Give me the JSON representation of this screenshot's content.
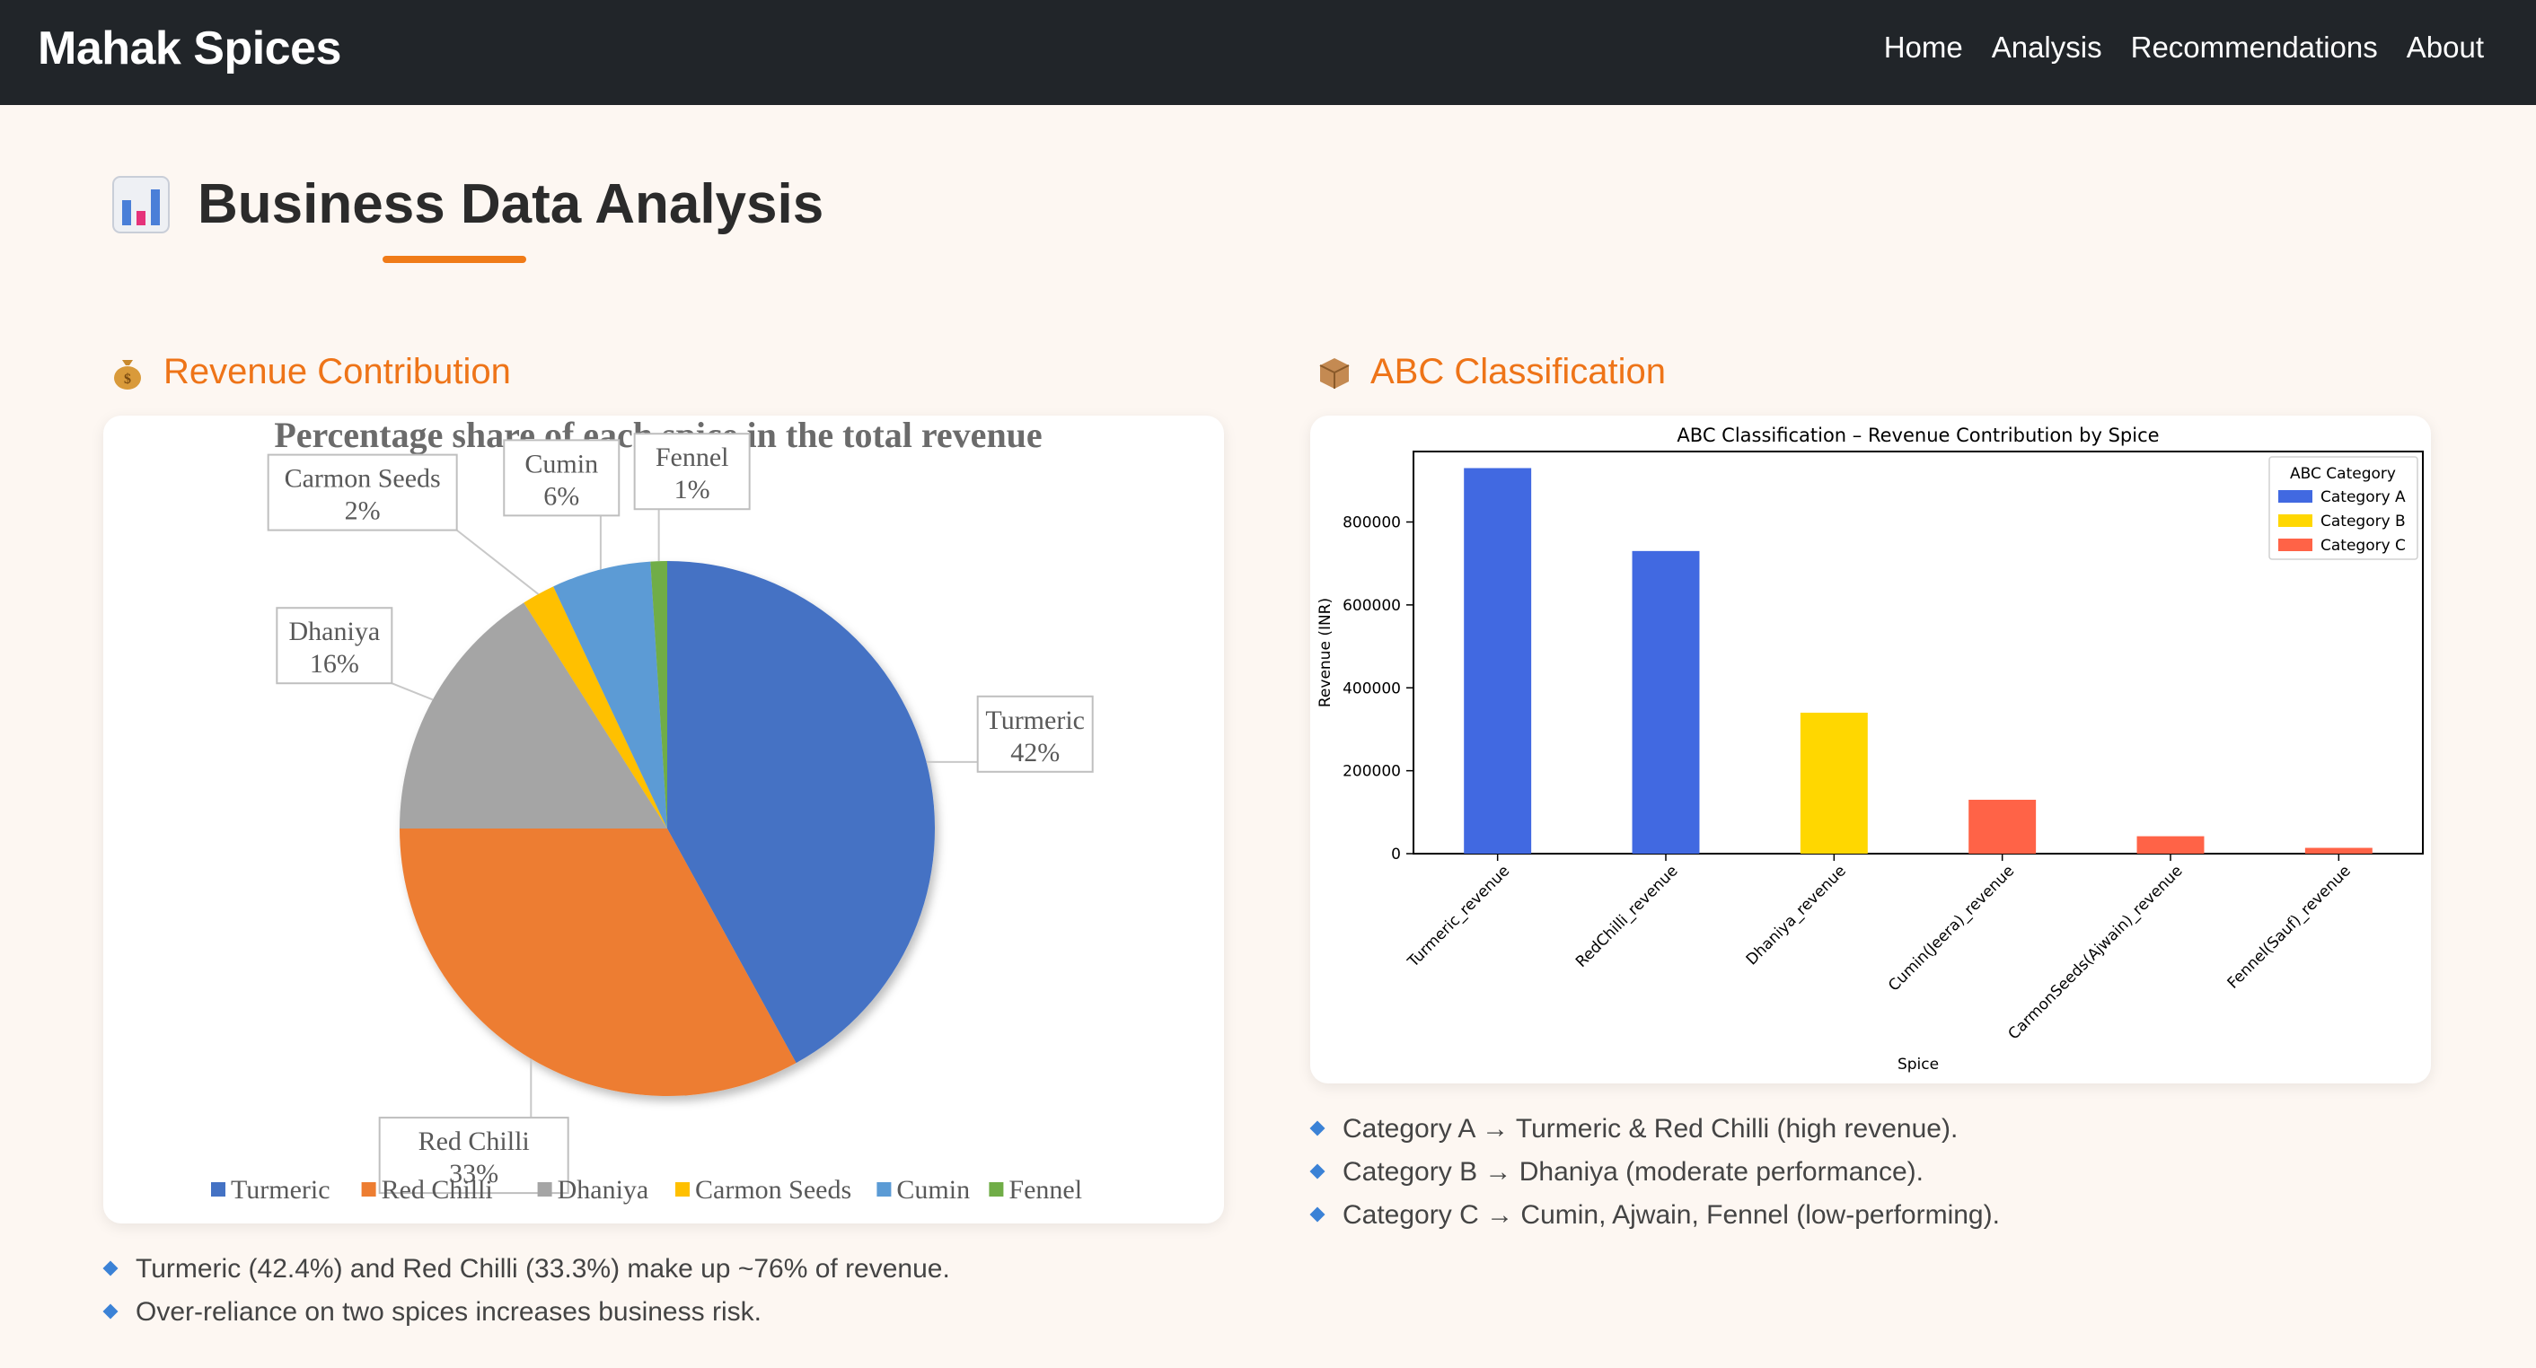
{
  "navbar": {
    "brand": "Mahak Spices",
    "links": [
      "Home",
      "Analysis",
      "Recommendations",
      "About"
    ]
  },
  "page": {
    "title": "Business Data Analysis",
    "accent_color": "#f07b18"
  },
  "revenue_section": {
    "heading": "Revenue Contribution",
    "bullets": [
      "Turmeric (42.4%) and Red Chilli (33.3%) make up ~76% of revenue.",
      "Over-reliance on two spices increases business risk."
    ]
  },
  "abc_section": {
    "heading": "ABC Classification",
    "bullets": [
      "Category A → Turmeric & Red Chilli (high revenue).",
      "Category B → Dhaniya (moderate performance).",
      "Category C → Cumin, Ajwain, Fennel (low-performing)."
    ]
  },
  "chart_data": [
    {
      "type": "pie",
      "title": "Percentage share of each spice in the total revenue",
      "categories": [
        "Turmeric",
        "Red Chilli",
        "Dhaniya",
        "Carmon Seeds",
        "Cumin",
        "Fennel"
      ],
      "values": [
        42,
        33,
        16,
        2,
        6,
        1
      ],
      "labels": [
        "42%",
        "33%",
        "16%",
        "2%",
        "6%",
        "1%"
      ],
      "colors": [
        "#4472c4",
        "#ed7d31",
        "#a5a5a5",
        "#ffc000",
        "#5b9bd5",
        "#70ad47"
      ],
      "legend": "bottom"
    },
    {
      "type": "bar",
      "title": "ABC Classification – Revenue Contribution by Spice",
      "categories": [
        "Turmeric_revenue",
        "RedChilli_revenue",
        "Dhaniya_revenue",
        "Cumin(Jeera)_revenue",
        "CarmonSeeds(Ajwain)_revenue",
        "Fennel(Sauf)_revenue"
      ],
      "values": [
        930000,
        730000,
        340000,
        130000,
        42000,
        14000
      ],
      "category_class": [
        "A",
        "A",
        "B",
        "C",
        "C",
        "C"
      ],
      "xlabel": "Spice",
      "ylabel": "Revenue (INR)",
      "ylim": [
        0,
        970000
      ],
      "yticks": [
        0,
        200000,
        400000,
        600000,
        800000
      ],
      "legend": {
        "title": "ABC Category",
        "position": "top-right",
        "entries": [
          {
            "key": "A",
            "label": "Category A",
            "color": "#4169e1"
          },
          {
            "key": "B",
            "label": "Category B",
            "color": "#ffd700"
          },
          {
            "key": "C",
            "label": "Category C",
            "color": "#ff6347"
          }
        ]
      }
    }
  ]
}
